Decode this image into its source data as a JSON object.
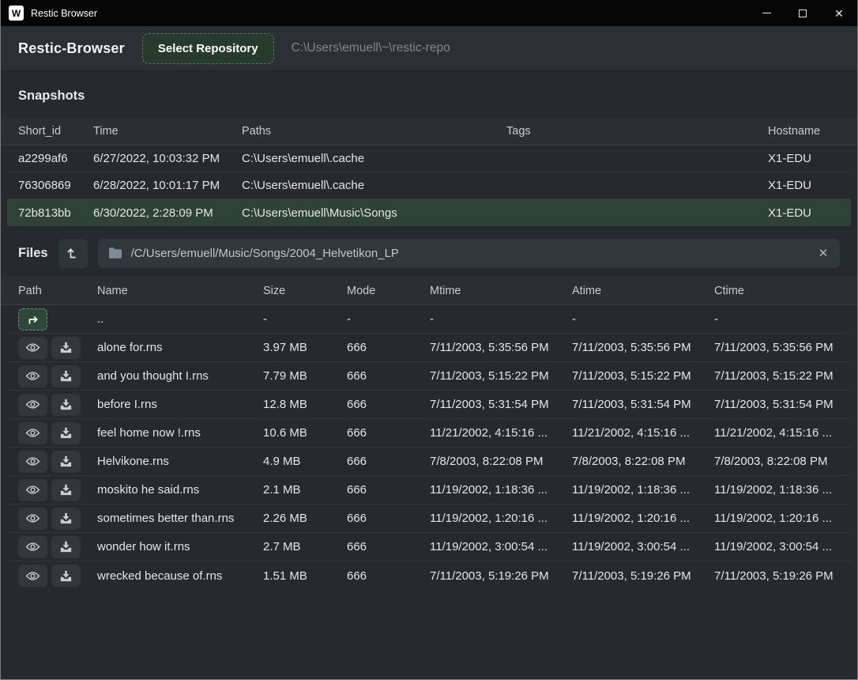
{
  "colors": {
    "titlebar_bg": "#050505",
    "window_bg": "#26292d",
    "toolbar_bg": "#2c3035",
    "selected_row_green": "#2e4237",
    "button_green": "#263a2d",
    "jump_button_green": "#2d4738",
    "muted_text": "#82878e"
  },
  "icons": {
    "app_logo_glyph": "W",
    "minimize": "minimize-line",
    "maximize": "maximize-square",
    "close_glyph": "✕",
    "level_up": "arrow-level-up",
    "folder": "folder",
    "clear_glyph": "✕",
    "parent_jump": "arrow-up-then-right",
    "preview": "eye",
    "download": "download-tray"
  },
  "window": {
    "title": "Restic Browser"
  },
  "toolbar": {
    "app_title": "Restic-Browser",
    "select_repository_label": "Select Repository",
    "repository_path": "C:\\Users\\emuell\\~\\restic-repo"
  },
  "snapshots": {
    "heading": "Snapshots",
    "columns": [
      "Short_id",
      "Time",
      "Paths",
      "Tags",
      "Hostname"
    ],
    "rows": [
      {
        "short_id": "a2299af6",
        "time": "6/27/2022, 10:03:32 PM",
        "paths": "C:\\Users\\emuell\\.cache",
        "tags": "",
        "hostname": "X1-EDU",
        "selected": false
      },
      {
        "short_id": "76306869",
        "time": "6/28/2022, 10:01:17 PM",
        "paths": "C:\\Users\\emuell\\.cache",
        "tags": "",
        "hostname": "X1-EDU",
        "selected": false
      },
      {
        "short_id": "72b813bb",
        "time": "6/30/2022, 2:28:09 PM",
        "paths": "C:\\Users\\emuell\\Music\\Songs",
        "tags": "",
        "hostname": "X1-EDU",
        "selected": true
      }
    ]
  },
  "files": {
    "heading": "Files",
    "path_value": "/C/Users/emuell/Music/Songs/2004_Helvetikon_LP",
    "columns": [
      "Path",
      "Name",
      "Size",
      "Mode",
      "Mtime",
      "Atime",
      "Ctime"
    ],
    "parent_row": {
      "name": "..",
      "size": "-",
      "mode": "-",
      "mtime": "-",
      "atime": "-",
      "ctime": "-"
    },
    "rows": [
      {
        "name": "alone for.rns",
        "size": "3.97 MB",
        "mode": "666",
        "mtime": "7/11/2003, 5:35:56 PM",
        "atime": "7/11/2003, 5:35:56 PM",
        "ctime": "7/11/2003, 5:35:56 PM"
      },
      {
        "name": "and you thought I.rns",
        "size": "7.79 MB",
        "mode": "666",
        "mtime": "7/11/2003, 5:15:22 PM",
        "atime": "7/11/2003, 5:15:22 PM",
        "ctime": "7/11/2003, 5:15:22 PM"
      },
      {
        "name": "before I.rns",
        "size": "12.8 MB",
        "mode": "666",
        "mtime": "7/11/2003, 5:31:54 PM",
        "atime": "7/11/2003, 5:31:54 PM",
        "ctime": "7/11/2003, 5:31:54 PM"
      },
      {
        "name": "feel home now !.rns",
        "size": "10.6 MB",
        "mode": "666",
        "mtime": "11/21/2002, 4:15:16 ...",
        "atime": "11/21/2002, 4:15:16 ...",
        "ctime": "11/21/2002, 4:15:16 ..."
      },
      {
        "name": "Helvikone.rns",
        "size": "4.9 MB",
        "mode": "666",
        "mtime": "7/8/2003, 8:22:08 PM",
        "atime": "7/8/2003, 8:22:08 PM",
        "ctime": "7/8/2003, 8:22:08 PM"
      },
      {
        "name": "moskito he said.rns",
        "size": "2.1 MB",
        "mode": "666",
        "mtime": "11/19/2002, 1:18:36 ...",
        "atime": "11/19/2002, 1:18:36 ...",
        "ctime": "11/19/2002, 1:18:36 ..."
      },
      {
        "name": "sometimes better than.rns",
        "size": "2.26 MB",
        "mode": "666",
        "mtime": "11/19/2002, 1:20:16 ...",
        "atime": "11/19/2002, 1:20:16 ...",
        "ctime": "11/19/2002, 1:20:16 ..."
      },
      {
        "name": "wonder how it.rns",
        "size": "2.7 MB",
        "mode": "666",
        "mtime": "11/19/2002, 3:00:54 ...",
        "atime": "11/19/2002, 3:00:54 ...",
        "ctime": "11/19/2002, 3:00:54 ..."
      },
      {
        "name": "wrecked because of.rns",
        "size": "1.51 MB",
        "mode": "666",
        "mtime": "7/11/2003, 5:19:26 PM",
        "atime": "7/11/2003, 5:19:26 PM",
        "ctime": "7/11/2003, 5:19:26 PM"
      }
    ]
  }
}
